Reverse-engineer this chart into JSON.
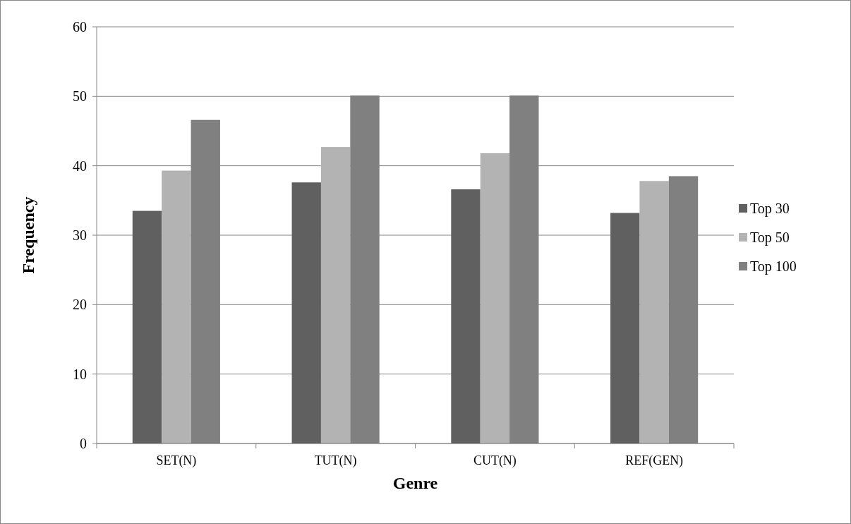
{
  "chart_data": {
    "type": "bar",
    "xlabel": "Genre",
    "ylabel": "Frequency",
    "categories": [
      "SET(N)",
      "TUT(N)",
      "CUT(N)",
      "REF(GEN)"
    ],
    "series": [
      {
        "name": "Top 30",
        "color": "#606060",
        "values": [
          33.5,
          37.6,
          36.6,
          33.2
        ]
      },
      {
        "name": "Top 50",
        "color": "#b3b3b3",
        "values": [
          39.3,
          42.7,
          41.8,
          37.8
        ]
      },
      {
        "name": "Top 100",
        "color": "#808080",
        "values": [
          46.6,
          50.1,
          50.1,
          38.5
        ]
      }
    ],
    "ylim": [
      0,
      60
    ],
    "yticks": [
      0,
      10,
      20,
      30,
      40,
      50,
      60
    ],
    "grid": "y",
    "legend": "right"
  }
}
